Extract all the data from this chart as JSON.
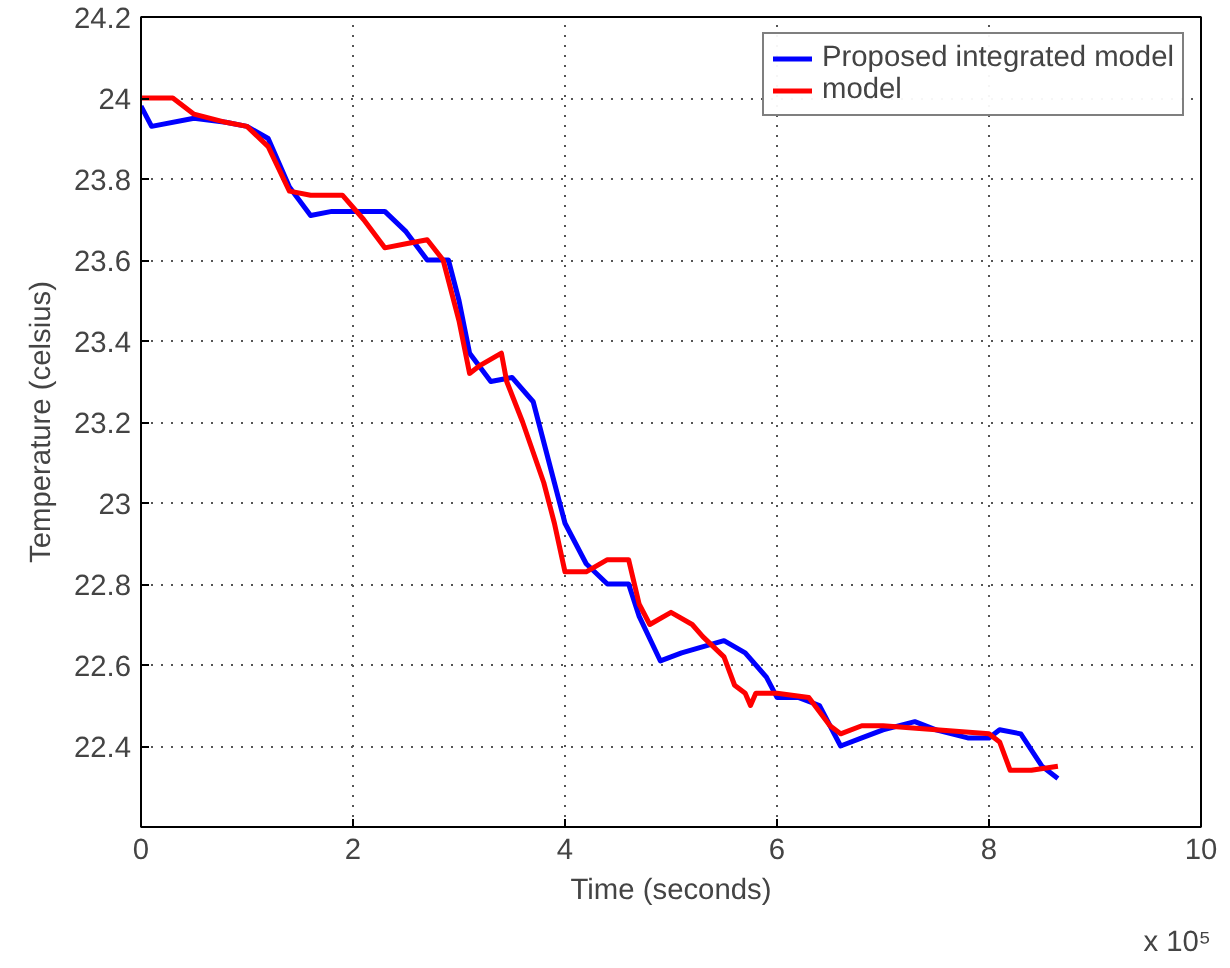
{
  "chart_data": {
    "type": "line",
    "xlabel": "Time (seconds)",
    "ylabel": "Temperature (celsius)",
    "annotations": [
      "x 10⁵"
    ],
    "xlim": [
      0,
      10
    ],
    "xticks": [
      0,
      2,
      4,
      6,
      8,
      10
    ],
    "ylim": [
      22.2,
      24.2
    ],
    "yticks": [
      22.4,
      22.6,
      22.8,
      23,
      23.2,
      23.4,
      23.6,
      23.8,
      24,
      24.2
    ],
    "grid": true,
    "legend": "top right",
    "line_style": "solid",
    "series": [
      {
        "name": "Proposed integrated model",
        "color": "#0000ff",
        "x": [
          0,
          0.1,
          0.5,
          0.8,
          1.0,
          1.2,
          1.4,
          1.6,
          1.8,
          2.0,
          2.3,
          2.5,
          2.7,
          2.9,
          3.0,
          3.1,
          3.3,
          3.5,
          3.7,
          3.9,
          4.0,
          4.2,
          4.4,
          4.6,
          4.7,
          4.9,
          5.1,
          5.5,
          5.7,
          5.9,
          6.0,
          6.2,
          6.4,
          6.5,
          6.6,
          6.8,
          7.0,
          7.3,
          7.5,
          7.8,
          8.0,
          8.1,
          8.3,
          8.5,
          8.65
        ],
        "values": [
          23.98,
          23.93,
          23.95,
          23.94,
          23.93,
          23.9,
          23.78,
          23.71,
          23.72,
          23.72,
          23.72,
          23.67,
          23.6,
          23.6,
          23.5,
          23.37,
          23.3,
          23.31,
          23.25,
          23.05,
          22.95,
          22.85,
          22.8,
          22.8,
          22.72,
          22.61,
          22.63,
          22.66,
          22.63,
          22.57,
          22.52,
          22.52,
          22.5,
          22.45,
          22.4,
          22.42,
          22.44,
          22.46,
          22.44,
          22.42,
          22.42,
          22.44,
          22.43,
          22.35,
          22.32
        ]
      },
      {
        "name": "model",
        "color": "#ff0000",
        "x": [
          0,
          0.3,
          0.5,
          0.8,
          1.0,
          1.2,
          1.4,
          1.6,
          1.9,
          2.1,
          2.3,
          2.5,
          2.7,
          2.85,
          3.0,
          3.1,
          3.2,
          3.4,
          3.45,
          3.6,
          3.8,
          3.9,
          4.0,
          4.2,
          4.4,
          4.6,
          4.7,
          4.8,
          5.0,
          5.2,
          5.3,
          5.5,
          5.6,
          5.7,
          5.75,
          5.8,
          6.0,
          6.3,
          6.5,
          6.6,
          6.8,
          7.0,
          7.5,
          8.0,
          8.1,
          8.2,
          8.4,
          8.65
        ],
        "values": [
          24.0,
          24.0,
          23.96,
          23.94,
          23.93,
          23.88,
          23.77,
          23.76,
          23.76,
          23.7,
          23.63,
          23.64,
          23.65,
          23.6,
          23.45,
          23.32,
          23.34,
          23.37,
          23.3,
          23.2,
          23.05,
          22.95,
          22.83,
          22.83,
          22.86,
          22.86,
          22.75,
          22.7,
          22.73,
          22.7,
          22.67,
          22.62,
          22.55,
          22.53,
          22.5,
          22.53,
          22.53,
          22.52,
          22.45,
          22.43,
          22.45,
          22.45,
          22.44,
          22.43,
          22.41,
          22.34,
          22.34,
          22.35
        ]
      }
    ]
  }
}
